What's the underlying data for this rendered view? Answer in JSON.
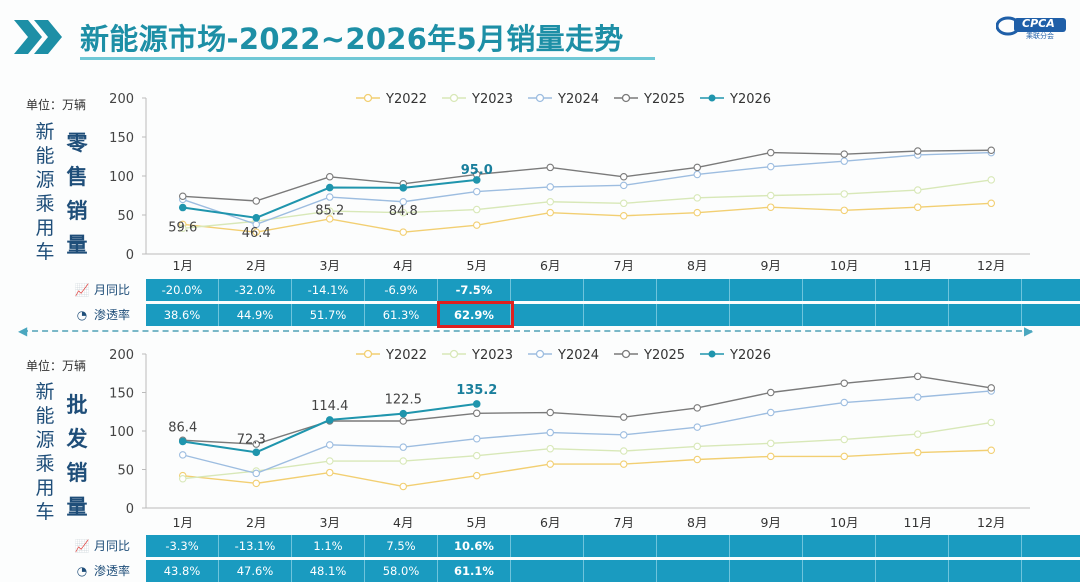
{
  "header": {
    "title": "新能源市场-2022~2026年5月销量走势",
    "logo_text": "CPCA",
    "logo_sub": "乘联分会"
  },
  "colors": {
    "Y2022": "#f2cf72",
    "Y2023": "#d8e8b8",
    "Y2024": "#9dbde0",
    "Y2025": "#7a7a7a",
    "Y2026": "#1f95ad",
    "table_bg": "#1a9bc0",
    "title": "#1d8fa6"
  },
  "months": [
    "1月",
    "2月",
    "3月",
    "4月",
    "5月",
    "6月",
    "7月",
    "8月",
    "9月",
    "10月",
    "11月",
    "12月"
  ],
  "chart_data": [
    {
      "type": "line",
      "unit_label": "单位：万辆",
      "side_label": "新能源乘用车",
      "metric_label": "零售销量",
      "ylim": [
        0,
        200
      ],
      "yticks": [
        0,
        50,
        100,
        150,
        200
      ],
      "series": [
        {
          "name": "Y2022",
          "values": [
            38,
            28,
            45,
            28,
            37,
            53,
            49,
            53,
            60,
            56,
            60,
            65
          ]
        },
        {
          "name": "Y2023",
          "values": [
            33,
            42,
            55,
            53,
            57,
            67,
            65,
            72,
            75,
            77,
            82,
            95
          ]
        },
        {
          "name": "Y2024",
          "values": [
            70,
            38,
            73,
            67,
            80,
            86,
            88,
            102,
            112,
            119,
            127,
            130
          ]
        },
        {
          "name": "Y2025",
          "values": [
            74,
            68,
            99,
            90,
            102,
            111,
            99,
            111,
            130,
            128,
            132,
            133
          ]
        },
        {
          "name": "Y2026",
          "values": [
            59.6,
            46.4,
            85.2,
            84.8,
            95.0
          ]
        }
      ],
      "data_labels": [
        "59.6",
        "46.4",
        "85.2",
        "84.8",
        "95.0"
      ],
      "table": {
        "yoy_label": "月同比",
        "yoy": [
          "-20.0%",
          "-32.0%",
          "-14.1%",
          "-6.9%",
          "-7.5%"
        ],
        "pen_label": "渗透率",
        "pen": [
          "38.6%",
          "44.9%",
          "51.7%",
          "61.3%",
          "62.9%"
        ]
      }
    },
    {
      "type": "line",
      "unit_label": "单位：万辆",
      "side_label": "新能源乘用车",
      "metric_label": "批发销量",
      "ylim": [
        0,
        200
      ],
      "yticks": [
        0,
        50,
        100,
        150,
        200
      ],
      "series": [
        {
          "name": "Y2022",
          "values": [
            42,
            32,
            46,
            28,
            42,
            57,
            57,
            63,
            67,
            67,
            72,
            75
          ]
        },
        {
          "name": "Y2023",
          "values": [
            38,
            48,
            61,
            61,
            68,
            77,
            74,
            80,
            84,
            89,
            96,
            111
          ]
        },
        {
          "name": "Y2024",
          "values": [
            69,
            45,
            82,
            79,
            90,
            98,
            95,
            105,
            124,
            137,
            144,
            152
          ]
        },
        {
          "name": "Y2025",
          "values": [
            88,
            83,
            113,
            113,
            123,
            124,
            118,
            130,
            150,
            162,
            171,
            156
          ]
        },
        {
          "name": "Y2026",
          "values": [
            86.4,
            72.3,
            114.4,
            122.5,
            135.2
          ]
        }
      ],
      "data_labels": [
        "86.4",
        "72.3",
        "114.4",
        "122.5",
        "135.2"
      ],
      "table": {
        "yoy_label": "月同比",
        "yoy": [
          "-3.3%",
          "-13.1%",
          "1.1%",
          "7.5%",
          "10.6%"
        ],
        "pen_label": "渗透率",
        "pen": [
          "43.8%",
          "47.6%",
          "48.1%",
          "58.0%",
          "61.1%"
        ]
      }
    }
  ]
}
